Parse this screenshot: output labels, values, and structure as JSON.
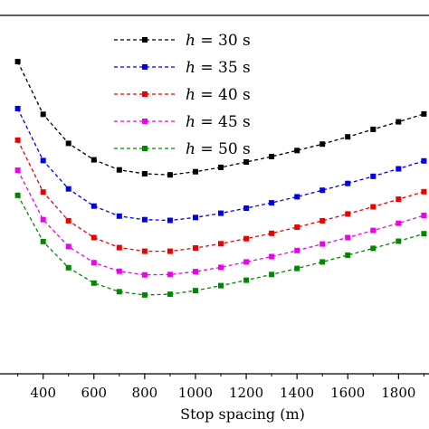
{
  "chart_data": {
    "type": "line",
    "xlabel": "Stop spacing (m)",
    "ylabel": "",
    "title": "",
    "xlim": [
      230,
      1920
    ],
    "ylim": [
      0,
      100
    ],
    "x_ticks": [
      400,
      600,
      800,
      1000,
      1200,
      1400,
      1600,
      1800
    ],
    "x": [
      300,
      400,
      500,
      600,
      700,
      800,
      900,
      1000,
      1100,
      1200,
      1300,
      1400,
      1500,
      1600,
      1700,
      1800,
      1900
    ],
    "grid": false,
    "legend_position": "top-left",
    "series": [
      {
        "name": "h = 30 s",
        "legend_var": "h",
        "legend_rest": " = 30 s",
        "color": "#000000",
        "values": [
          87.1,
          72.4,
          64.3,
          59.7,
          56.9,
          55.8,
          55.5,
          56.4,
          57.6,
          59.1,
          60.6,
          62.3,
          64.1,
          66.1,
          68.2,
          70.3,
          72.5
        ]
      },
      {
        "name": "h = 35 s",
        "legend_var": "h",
        "legend_rest": " = 35 s",
        "color": "#0000ee",
        "values": [
          74.0,
          59.5,
          51.6,
          46.8,
          44.0,
          43.0,
          42.8,
          43.6,
          44.8,
          46.2,
          47.7,
          49.4,
          51.2,
          53.1,
          55.1,
          57.2,
          59.4
        ]
      },
      {
        "name": "h = 40 s",
        "legend_var": "h",
        "legend_rest": " = 40 s",
        "color": "#ee0000",
        "values": [
          65.2,
          50.7,
          42.7,
          38.0,
          35.2,
          34.2,
          34.2,
          35.1,
          36.3,
          37.7,
          39.2,
          40.9,
          42.7,
          44.6,
          46.6,
          48.7,
          50.8
        ]
      },
      {
        "name": "h = 45 s",
        "legend_var": "h",
        "legend_rest": " = 45 s",
        "color": "#ee00ee",
        "values": [
          56.8,
          43.0,
          35.5,
          31.0,
          28.6,
          27.6,
          27.7,
          28.5,
          29.7,
          31.2,
          32.7,
          34.4,
          36.2,
          38.0,
          40.0,
          42.0,
          44.2
        ]
      },
      {
        "name": "h = 50 s",
        "legend_var": "h",
        "legend_rest": " = 50 s",
        "color": "#008800",
        "values": [
          49.8,
          36.9,
          29.6,
          25.3,
          22.9,
          22.0,
          22.2,
          23.2,
          24.6,
          26.1,
          27.7,
          29.4,
          31.2,
          33.1,
          35.0,
          37.0,
          39.1
        ]
      }
    ]
  }
}
